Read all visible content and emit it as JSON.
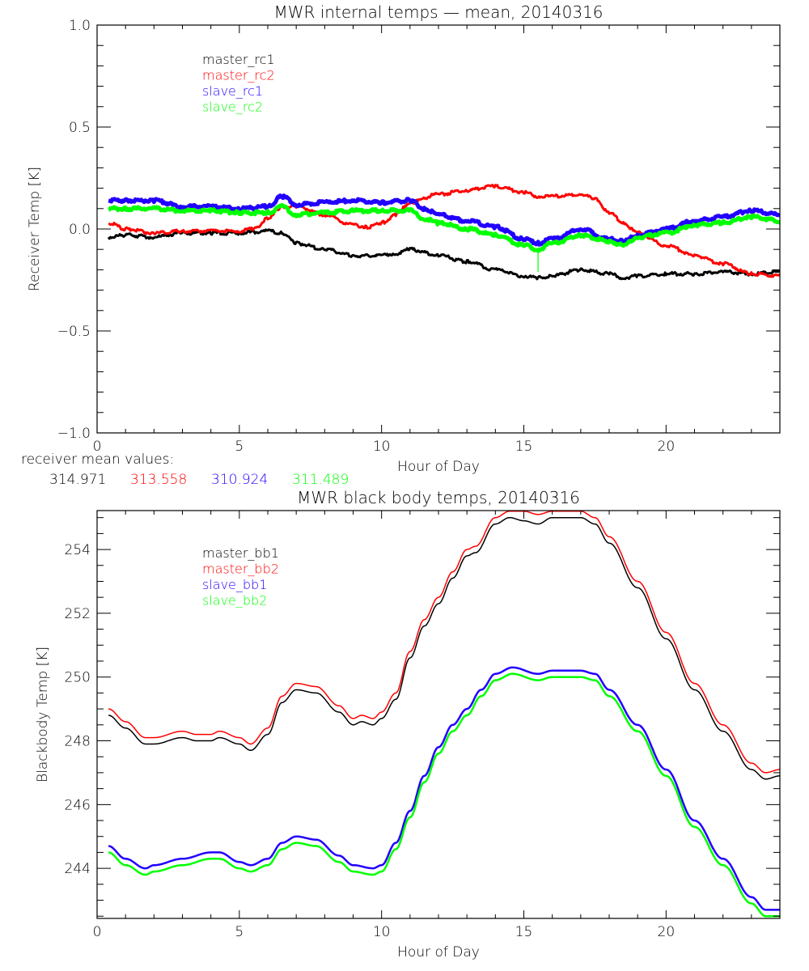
{
  "figure": {
    "receiver_mean": {
      "label": "receiver mean values:",
      "values": [
        {
          "text": "314.971",
          "color": "#000000"
        },
        {
          "text": "313.558",
          "color": "#ff0000"
        },
        {
          "text": "310.924",
          "color": "#2200ff"
        },
        {
          "text": "311.489",
          "color": "#00ff00"
        }
      ]
    }
  },
  "chart_data": [
    {
      "type": "line",
      "title": "MWR internal temps — mean, 20140316",
      "xlabel": "Hour of Day",
      "ylabel": "Receiver Temp [K]",
      "xlim": [
        0,
        24
      ],
      "ylim": [
        -1.0,
        1.0
      ],
      "xticks": [
        0,
        5,
        10,
        15,
        20
      ],
      "xtick_labels": [
        "0",
        "5",
        "10",
        "15",
        "20"
      ],
      "xminor_step": 1,
      "yticks": [
        -1.0,
        -0.5,
        0.0,
        0.5,
        1.0
      ],
      "ytick_labels": [
        "−1.0",
        "−0.5",
        "0.0",
        "0.5",
        "1.0"
      ],
      "yminor_step": 0.1,
      "grid": false,
      "legend_position": "top-left-inside",
      "series": [
        {
          "name": "master_rc1",
          "color": "#000000",
          "width": 3,
          "x": [
            0.4,
            1,
            2,
            3,
            4,
            5,
            6,
            6.5,
            7,
            8,
            9,
            10,
            10.5,
            11,
            12,
            13,
            14,
            15,
            15.5,
            16,
            17,
            18,
            18.5,
            19,
            20,
            21,
            22,
            23,
            24
          ],
          "y": [
            -0.04,
            -0.03,
            -0.04,
            -0.02,
            -0.02,
            -0.02,
            -0.01,
            -0.02,
            -0.07,
            -0.1,
            -0.13,
            -0.13,
            -0.12,
            -0.1,
            -0.13,
            -0.16,
            -0.2,
            -0.23,
            -0.24,
            -0.23,
            -0.2,
            -0.22,
            -0.24,
            -0.23,
            -0.22,
            -0.22,
            -0.21,
            -0.22,
            -0.21
          ]
        },
        {
          "name": "master_rc2",
          "color": "#ff0000",
          "width": 3,
          "x": [
            0.4,
            1,
            2,
            3,
            4,
            5,
            5.5,
            6,
            6.5,
            7,
            8,
            9,
            9.5,
            10,
            10.5,
            11,
            12,
            13,
            14,
            15,
            15.5,
            16,
            17,
            17.5,
            18,
            18.5,
            19,
            20,
            21,
            22,
            23,
            24
          ],
          "y": [
            0.03,
            0.0,
            -0.02,
            -0.01,
            -0.01,
            -0.01,
            0.0,
            0.05,
            0.11,
            0.11,
            0.07,
            0.02,
            0.01,
            0.03,
            0.07,
            0.13,
            0.17,
            0.19,
            0.21,
            0.18,
            0.16,
            0.16,
            0.17,
            0.15,
            0.08,
            0.03,
            -0.02,
            -0.08,
            -0.13,
            -0.17,
            -0.22,
            -0.23
          ]
        },
        {
          "name": "slave_rc1",
          "color": "#2200ff",
          "width": 5,
          "x": [
            0.4,
            1,
            2,
            3,
            4,
            5,
            6,
            6.5,
            7,
            8,
            9,
            10,
            11,
            11.5,
            12,
            13,
            14,
            15,
            15.5,
            16,
            17,
            18,
            18.5,
            19,
            20,
            21,
            22,
            23,
            24
          ],
          "y": [
            0.14,
            0.14,
            0.14,
            0.11,
            0.11,
            0.1,
            0.11,
            0.16,
            0.12,
            0.13,
            0.14,
            0.13,
            0.14,
            0.1,
            0.07,
            0.04,
            0.01,
            -0.05,
            -0.07,
            -0.05,
            0.0,
            -0.05,
            -0.06,
            -0.03,
            0.0,
            0.04,
            0.06,
            0.09,
            0.07
          ]
        },
        {
          "name": "slave_rc2",
          "color": "#00ff00",
          "width": 5,
          "x": [
            0.4,
            1,
            2,
            3,
            4,
            5,
            6,
            6.5,
            7,
            8,
            9,
            10,
            11,
            11.5,
            12,
            13,
            14,
            15,
            15.5,
            16,
            17,
            18,
            18.5,
            19,
            20,
            21,
            22,
            23,
            24
          ],
          "y": [
            0.1,
            0.1,
            0.1,
            0.09,
            0.09,
            0.08,
            0.08,
            0.11,
            0.07,
            0.08,
            0.09,
            0.09,
            0.09,
            0.05,
            0.03,
            0.0,
            -0.03,
            -0.08,
            -0.1,
            -0.07,
            -0.03,
            -0.06,
            -0.08,
            -0.04,
            -0.02,
            0.02,
            0.03,
            0.06,
            0.04
          ],
          "spike": {
            "x": 15.5,
            "y": -0.21
          }
        }
      ]
    },
    {
      "type": "line",
      "title": "MWR black body temps, 20140316",
      "xlabel": "Hour of Day",
      "ylabel": "Blackbody Temp [K]",
      "xlim": [
        0,
        24
      ],
      "ylim": [
        242.43,
        255.22
      ],
      "xticks": [
        0,
        5,
        10,
        15,
        20
      ],
      "xtick_labels": [
        "0",
        "5",
        "10",
        "15",
        "20"
      ],
      "xminor_step": 1,
      "yticks": [
        244,
        246,
        248,
        250,
        252,
        254
      ],
      "ytick_labels": [
        "244",
        "246",
        "248",
        "250",
        "252",
        "254"
      ],
      "yminor_step": 0.5,
      "grid": false,
      "legend_position": "top-left-inside",
      "series": [
        {
          "name": "master_bb1",
          "color": "#000000",
          "width": 1.5,
          "x": [
            0.4,
            1,
            1.7,
            2,
            3,
            3.5,
            4,
            4.3,
            5,
            5.4,
            6,
            6.5,
            7,
            7.7,
            8.5,
            9,
            9.3,
            9.7,
            10,
            10.5,
            11,
            11.5,
            12,
            12.5,
            13,
            13.3,
            14,
            14.5,
            15,
            15.5,
            16,
            17,
            17.5,
            18,
            19,
            20,
            21,
            22,
            23,
            23.5,
            24
          ],
          "y": [
            248.8,
            248.4,
            247.9,
            247.9,
            248.1,
            248.0,
            248.0,
            248.1,
            247.9,
            247.7,
            248.2,
            249.2,
            249.6,
            249.5,
            248.9,
            248.5,
            248.6,
            248.5,
            248.7,
            249.3,
            250.6,
            251.6,
            252.3,
            253.1,
            253.8,
            253.9,
            254.8,
            255.0,
            254.9,
            254.8,
            255.0,
            255.0,
            254.8,
            254.2,
            252.8,
            251.2,
            249.6,
            248.3,
            247.1,
            246.8,
            246.9
          ]
        },
        {
          "name": "master_bb2",
          "color": "#ff0000",
          "width": 1.5,
          "x": [
            0.4,
            1,
            1.7,
            2,
            3,
            3.5,
            4,
            4.3,
            5,
            5.4,
            6,
            6.5,
            7,
            7.7,
            8.5,
            9,
            9.3,
            9.7,
            10,
            10.5,
            11,
            11.5,
            12,
            12.5,
            13,
            13.3,
            14,
            14.5,
            15,
            15.5,
            16,
            17,
            17.5,
            18,
            19,
            20,
            21,
            22,
            23,
            23.5,
            24
          ],
          "y": [
            249.0,
            248.6,
            248.1,
            248.1,
            248.3,
            248.2,
            248.2,
            248.3,
            248.1,
            247.9,
            248.4,
            249.4,
            249.8,
            249.7,
            249.1,
            248.7,
            248.8,
            248.7,
            248.9,
            249.5,
            250.8,
            251.8,
            252.5,
            253.3,
            254.0,
            254.1,
            255.0,
            255.2,
            255.2,
            255.1,
            255.2,
            255.2,
            255.0,
            254.4,
            253.0,
            251.4,
            249.8,
            248.5,
            247.3,
            247.0,
            247.1
          ]
        },
        {
          "name": "slave_bb1",
          "color": "#2200ff",
          "width": 2.5,
          "x": [
            0.4,
            1,
            1.7,
            2,
            3,
            4,
            4.3,
            5,
            5.4,
            6,
            6.5,
            7,
            7.7,
            8.5,
            9,
            9.7,
            10,
            10.5,
            11,
            11.5,
            12,
            12.5,
            13,
            13.5,
            14,
            14.6,
            15.5,
            16,
            17,
            17.5,
            18,
            19,
            20,
            21,
            22,
            23,
            23.5,
            24
          ],
          "y": [
            244.7,
            244.3,
            244.0,
            244.1,
            244.3,
            244.5,
            244.5,
            244.2,
            244.1,
            244.3,
            244.8,
            245.0,
            244.9,
            244.4,
            244.1,
            244.0,
            244.1,
            244.8,
            245.8,
            246.9,
            247.8,
            248.5,
            249.0,
            249.6,
            250.1,
            250.3,
            250.1,
            250.2,
            250.2,
            250.1,
            249.6,
            248.5,
            247.1,
            245.5,
            244.3,
            243.1,
            242.7,
            242.7
          ]
        },
        {
          "name": "slave_bb2",
          "color": "#00ff00",
          "width": 2.5,
          "x": [
            0.4,
            1,
            1.7,
            2,
            3,
            4,
            4.3,
            5,
            5.4,
            6,
            6.5,
            7,
            7.7,
            8.5,
            9,
            9.7,
            10,
            10.5,
            11,
            11.5,
            12,
            12.5,
            13,
            13.5,
            14,
            14.6,
            15.5,
            16,
            17,
            17.5,
            18,
            19,
            20,
            21,
            22,
            23,
            23.5,
            24
          ],
          "y": [
            244.5,
            244.1,
            243.8,
            243.9,
            244.1,
            244.3,
            244.3,
            244.0,
            243.9,
            244.1,
            244.6,
            244.8,
            244.7,
            244.2,
            243.9,
            243.8,
            243.9,
            244.6,
            245.6,
            246.7,
            247.6,
            248.3,
            248.8,
            249.4,
            249.9,
            250.1,
            249.9,
            250.0,
            250.0,
            249.9,
            249.4,
            248.3,
            246.9,
            245.3,
            244.1,
            242.9,
            242.5,
            242.5
          ]
        }
      ]
    }
  ]
}
